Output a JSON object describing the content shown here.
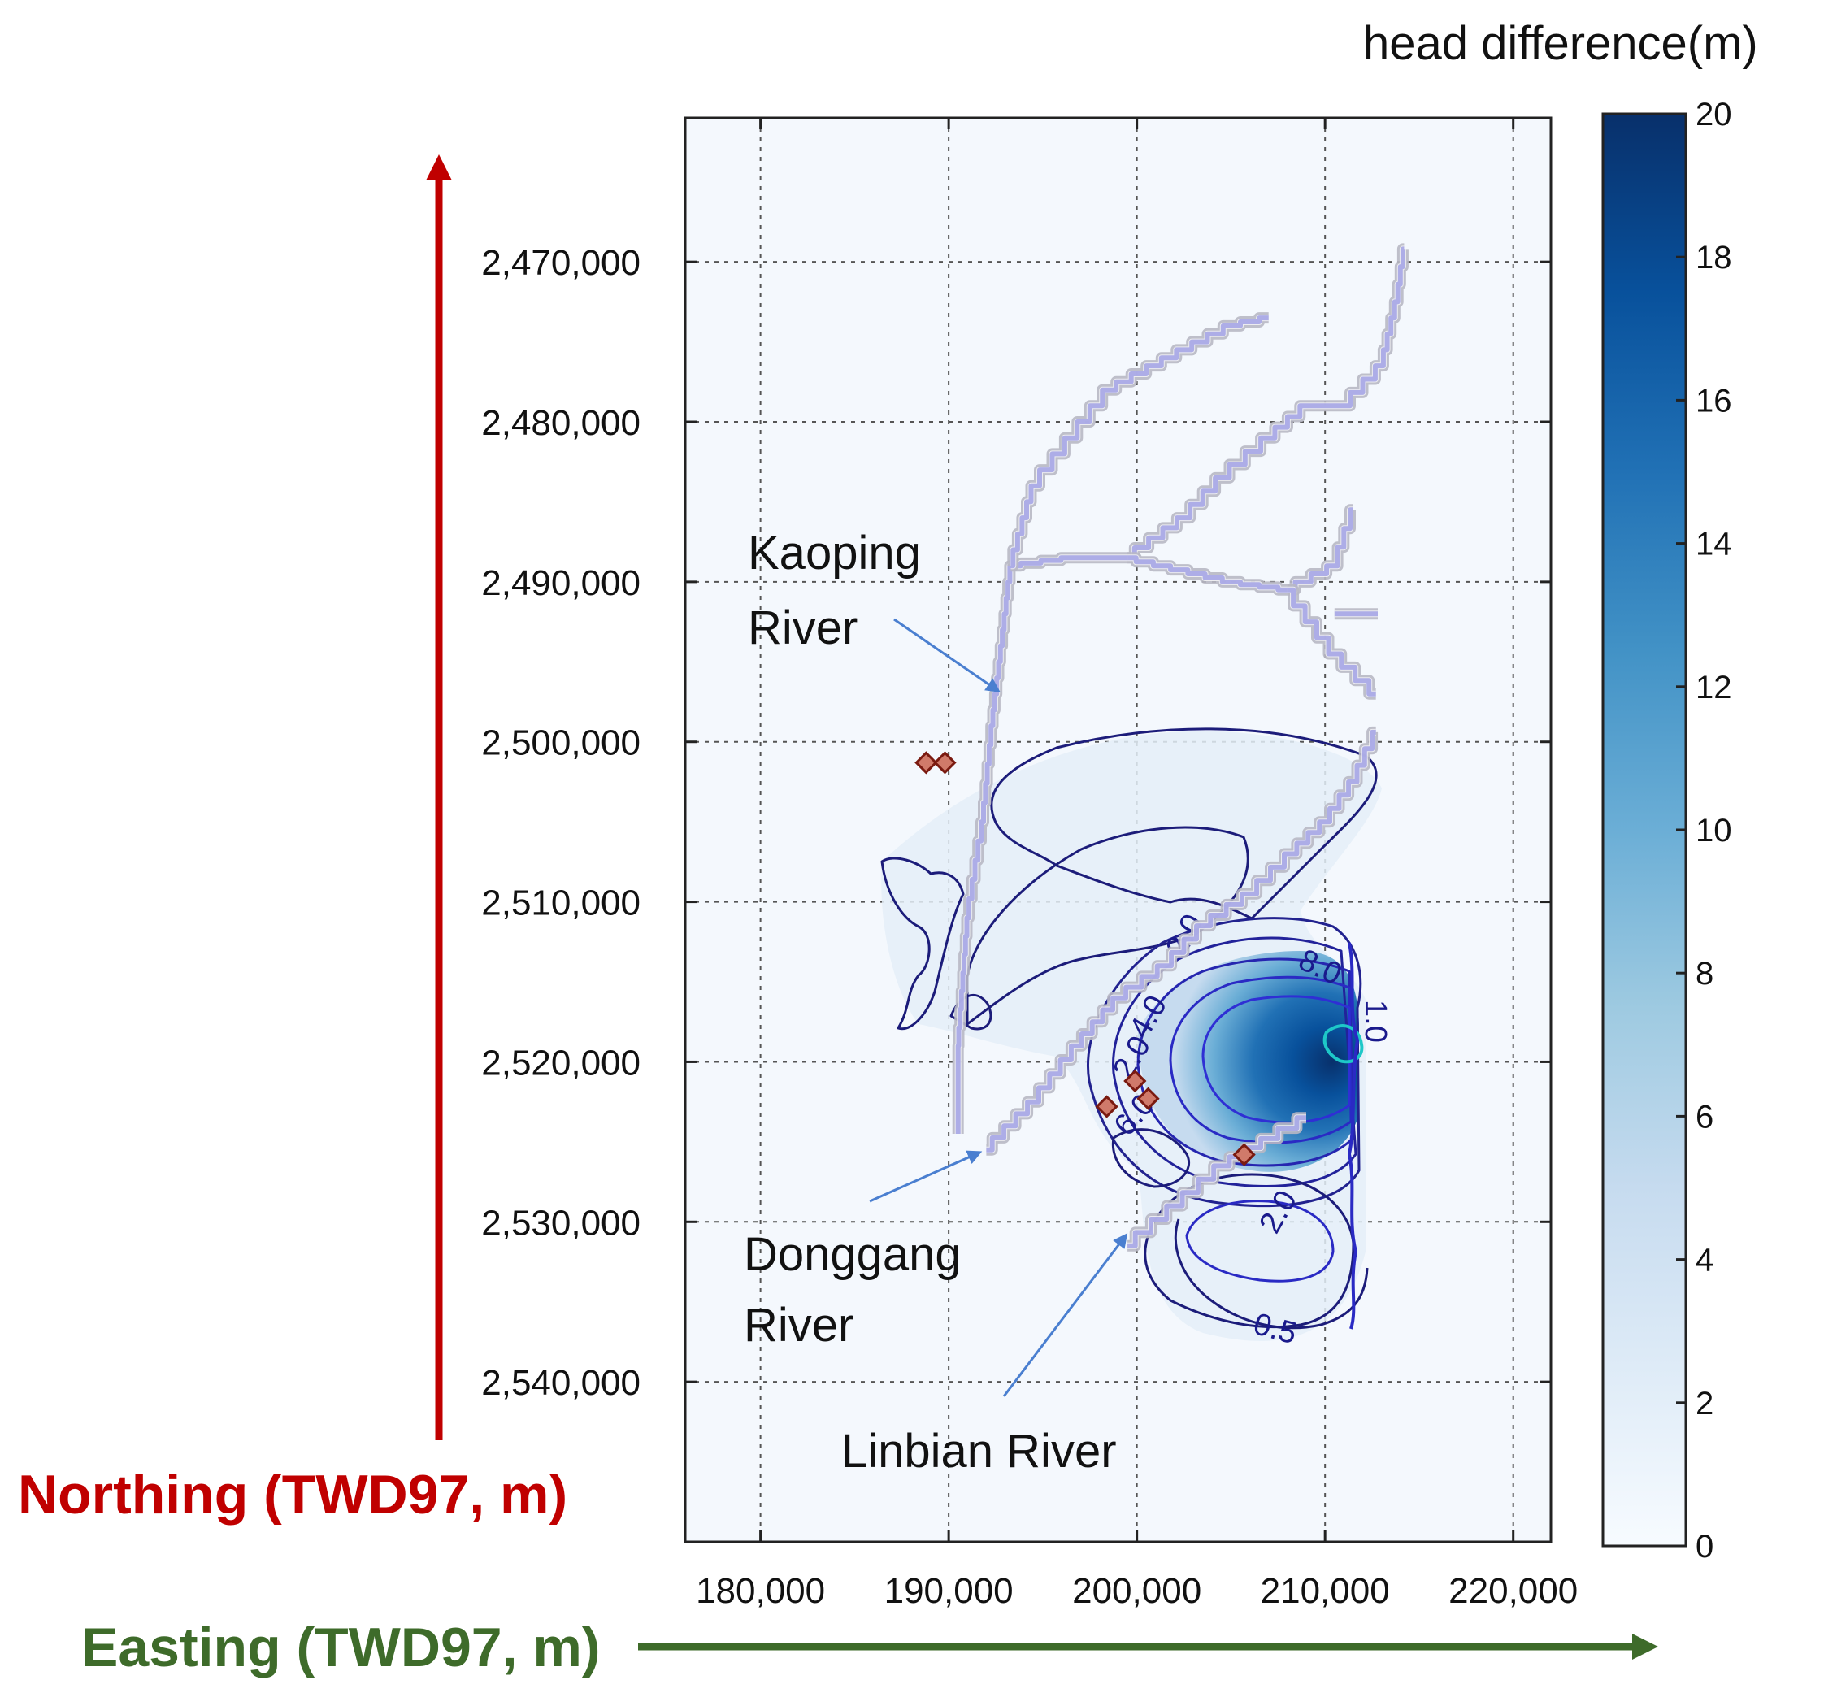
{
  "chart_data": {
    "type": "heatmap",
    "title": "",
    "colorbar": {
      "title": "head difference(m)",
      "range": [
        0,
        20
      ],
      "ticks": [
        0,
        2,
        4,
        6,
        8,
        10,
        12,
        14,
        16,
        18,
        20
      ],
      "tick_labels": [
        "0",
        "2",
        "4",
        "6",
        "8",
        "10",
        "12",
        "14",
        "16",
        "18",
        "20"
      ],
      "colors": [
        "#f7fbff",
        "#deebf7",
        "#c6dbef",
        "#9ecae1",
        "#6baed6",
        "#4292c6",
        "#2171b5",
        "#08519c",
        "#08306b"
      ]
    },
    "xaxis": {
      "label": "Easting (TWD97, m)",
      "range": [
        176000,
        222000
      ],
      "ticks": [
        180000,
        190000,
        200000,
        210000,
        220000
      ],
      "tick_labels": [
        "180,000",
        "190,000",
        "200,000",
        "210,000",
        "220,000"
      ],
      "color": "#3e6b2a"
    },
    "yaxis": {
      "label": "Northing (TWD97, m)",
      "range": [
        2461000,
        2550000
      ],
      "ticks": [
        2470000,
        2480000,
        2490000,
        2500000,
        2510000,
        2520000,
        2530000,
        2540000
      ],
      "tick_labels": [
        "2,470,000",
        "2,480,000",
        "2,490,000",
        "2,500,000",
        "2,510,000",
        "2,520,000",
        "2,530,000",
        "2,540,000"
      ],
      "color": "#c00000"
    },
    "grid": true,
    "contour_labels": [
      "2.0",
      "4.0",
      "6.0",
      "8.0",
      "0.5",
      "2.0",
      "2.0",
      "1.0"
    ],
    "rivers": [
      {
        "name": "Kaoping River",
        "label_lines": [
          "Kaoping",
          "River"
        ],
        "path": [
          [
            190500,
            2524500
          ],
          [
            190500,
            2519000
          ],
          [
            191000,
            2511000
          ],
          [
            191800,
            2505000
          ],
          [
            192300,
            2499000
          ],
          [
            192800,
            2494000
          ],
          [
            193300,
            2489000
          ],
          [
            196500,
            2488500
          ],
          [
            199500,
            2488500
          ],
          [
            202500,
            2486000
          ],
          [
            204500,
            2483500
          ],
          [
            207000,
            2481000
          ],
          [
            209000,
            2479000
          ],
          [
            211000,
            2479000
          ]
        ],
        "branches": [
          [
            [
              193300,
              2489000
            ],
            [
              194500,
              2484000
            ],
            [
              196500,
              2481000
            ],
            [
              198500,
              2478000
            ],
            [
              202500,
              2475500
            ],
            [
              205000,
              2474000
            ],
            [
              207000,
              2473500
            ]
          ],
          [
            [
              199500,
              2488500
            ],
            [
              205000,
              2490000
            ],
            [
              208000,
              2490500
            ],
            [
              210500,
              2489000
            ],
            [
              211500,
              2485500
            ]
          ],
          [
            [
              208000,
              2490500
            ],
            [
              210500,
              2494500
            ],
            [
              212700,
              2497000
            ]
          ],
          [
            [
              210500,
              2492000
            ],
            [
              212800,
              2492000
            ]
          ],
          [
            [
              211000,
              2479000
            ],
            [
              213000,
              2476500
            ],
            [
              213800,
              2472500
            ],
            [
              214200,
              2469200
            ]
          ]
        ]
      },
      {
        "name": "Donggang River",
        "label_lines": [
          "Donggang",
          "River"
        ],
        "path": [
          [
            192000,
            2525500
          ],
          [
            194500,
            2522500
          ],
          [
            196800,
            2519000
          ],
          [
            199000,
            2516000
          ],
          [
            201500,
            2514000
          ],
          [
            203500,
            2511500
          ],
          [
            206000,
            2509500
          ],
          [
            208200,
            2507000
          ],
          [
            210000,
            2505000
          ],
          [
            211500,
            2502500
          ],
          [
            212700,
            2499400
          ]
        ]
      },
      {
        "name": "Linbian River",
        "label_lines": [
          "Linbian River"
        ],
        "path": [
          [
            199500,
            2531500
          ],
          [
            202000,
            2529000
          ],
          [
            204500,
            2526500
          ],
          [
            207000,
            2524800
          ],
          [
            209000,
            2523500
          ]
        ]
      }
    ],
    "wells": [
      [
        188800,
        2501300
      ],
      [
        189800,
        2501300
      ],
      [
        198400,
        2522800
      ],
      [
        199900,
        2521200
      ],
      [
        200600,
        2522300
      ],
      [
        205700,
        2525800
      ]
    ]
  }
}
